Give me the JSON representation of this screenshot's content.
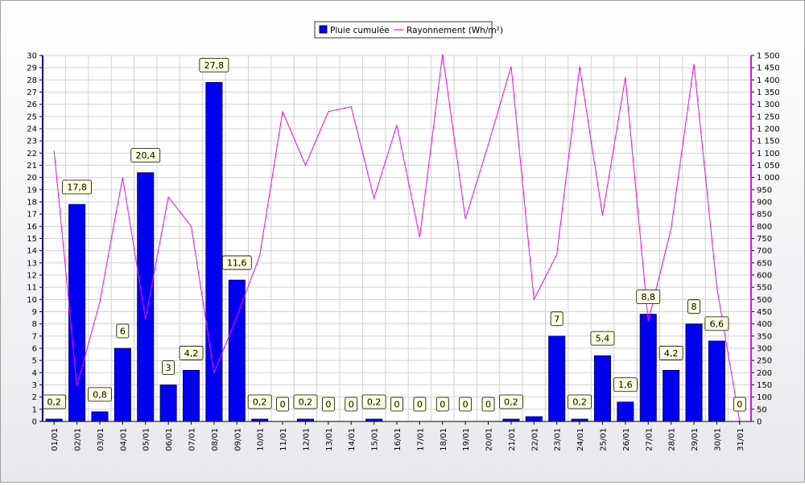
{
  "chart_data": {
    "type": "bar",
    "categories": [
      "01/01",
      "02/01",
      "03/01",
      "04/01",
      "05/01",
      "06/01",
      "07/01",
      "08/01",
      "09/01",
      "10/01",
      "11/01",
      "12/01",
      "13/01",
      "14/01",
      "15/01",
      "16/01",
      "17/01",
      "18/01",
      "19/01",
      "20/01",
      "21/01",
      "22/01",
      "23/01",
      "24/01",
      "25/01",
      "26/01",
      "27/01",
      "28/01",
      "29/01",
      "30/01",
      "31/01"
    ],
    "series": [
      {
        "name": "Pluie cumulée",
        "type": "bar",
        "axis": "left",
        "color": "#0000ee",
        "values": [
          0.2,
          17.8,
          0.8,
          6,
          20.4,
          3,
          4.2,
          27.8,
          11.6,
          0.2,
          0,
          0.2,
          0,
          0,
          0.2,
          0,
          0,
          0,
          0,
          0,
          0.2,
          0.4,
          7,
          0.2,
          5.4,
          1.6,
          8.8,
          4.2,
          8,
          6.6,
          0
        ],
        "labels": [
          "0,2",
          "17,8",
          "0,8",
          "6",
          "20,4",
          "3",
          "4,2",
          "27,8",
          "11,6",
          "0,2",
          "0",
          "0,2",
          "0",
          "0",
          "0,2",
          "0",
          "0",
          "0",
          "0",
          "0",
          "0,2",
          "",
          "7",
          "0,2",
          "5,4",
          "1,6",
          "8,8",
          "4,2",
          "8",
          "6,6",
          "0"
        ]
      },
      {
        "name": "Rayonnement (Wh/m²)",
        "type": "line",
        "axis": "right",
        "color": "#ff00ff",
        "values": [
          1110,
          145,
          490,
          1000,
          420,
          920,
          800,
          200,
          430,
          680,
          1270,
          1050,
          1270,
          1290,
          915,
          1215,
          755,
          1505,
          830,
          1135,
          1455,
          500,
          685,
          1455,
          845,
          1410,
          410,
          790,
          1465,
          550,
          0
        ]
      }
    ],
    "y_left": {
      "min": 0,
      "max": 30,
      "step": 1
    },
    "y_right": {
      "min": 0,
      "max": 1500,
      "step": 50
    },
    "grid": true,
    "legend_position": "top-center"
  }
}
